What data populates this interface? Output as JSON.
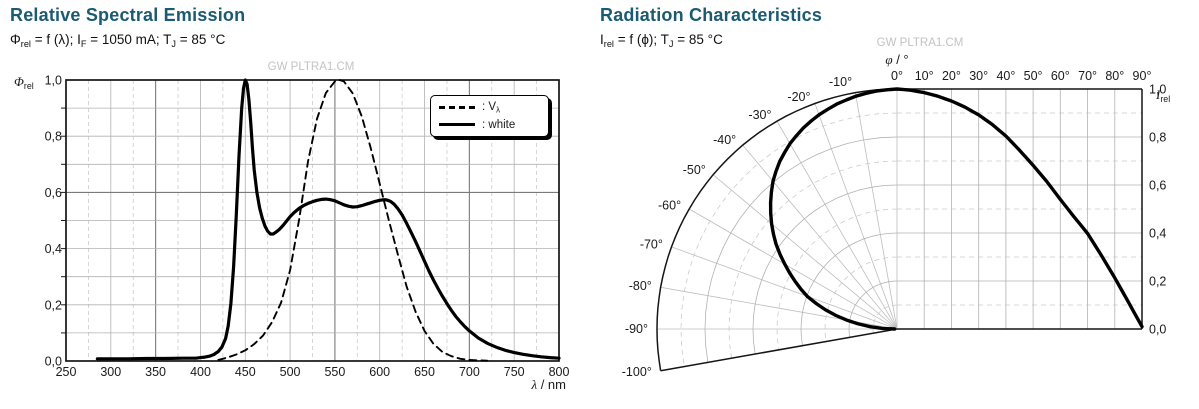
{
  "left_chart": {
    "title": "Relative Spectral Emission",
    "subtitle_segments": [
      {
        "t": "Φ"
      },
      {
        "t": "rel",
        "sub": true
      },
      {
        "t": " = f (λ); I"
      },
      {
        "t": "F",
        "sub": true
      },
      {
        "t": " = 1050 mA; T"
      },
      {
        "t": "J",
        "sub": true
      },
      {
        "t": " = 85 °C"
      }
    ],
    "ylabel_segments": [
      {
        "t": "Φ",
        "i": true
      },
      {
        "t": "rel",
        "sub": true
      }
    ],
    "xlabel_segments": [
      {
        "t": "λ",
        "i": true
      },
      {
        "t": " / nm"
      }
    ],
    "watermark": "GW PLTRA1.CM",
    "legend": {
      "items": [
        {
          "style": "dashed",
          "label_segments": [
            {
              "t": ": V"
            },
            {
              "t": "λ",
              "sub": true
            }
          ]
        },
        {
          "style": "solid",
          "label_segments": [
            {
              "t": ": white"
            }
          ]
        }
      ]
    }
  },
  "right_chart": {
    "title": "Radiation Characteristics",
    "subtitle_segments": [
      {
        "t": "I"
      },
      {
        "t": "rel",
        "sub": true
      },
      {
        "t": " = f (ϕ); T"
      },
      {
        "t": "J",
        "sub": true
      },
      {
        "t": " = 85 °C"
      }
    ],
    "top_axis_label_segments": [
      {
        "t": "φ",
        "i": true
      },
      {
        "t": " / °"
      }
    ],
    "ylabel_segments": [
      {
        "t": "I",
        "i": true
      },
      {
        "t": "rel",
        "sub": true
      }
    ],
    "watermark": "GW PLTRA1.CM"
  },
  "chart_data": [
    {
      "id": "spectral_emission",
      "type": "line",
      "title": "Relative Spectral Emission",
      "xlabel": "λ / nm",
      "ylabel": "Φrel",
      "xlim": [
        250,
        800
      ],
      "ylim": [
        0,
        1
      ],
      "x_ticks": {
        "values": [
          250,
          300,
          350,
          400,
          450,
          500,
          550,
          600,
          650,
          700,
          750,
          800
        ],
        "labels": [
          "250",
          "300",
          "350",
          "400",
          "450",
          "500",
          "550",
          "600",
          "650",
          "700",
          "750",
          "800"
        ]
      },
      "y_ticks": {
        "values": [
          0,
          0.2,
          0.4,
          0.6,
          0.8,
          1
        ],
        "labels": [
          "0,0",
          "0,2",
          "0,4",
          "0,6",
          "0,8",
          "1,0"
        ]
      },
      "grid": {
        "x_major_step": 50,
        "x_minor_step": 25,
        "emphasized_x": [
          350,
          550,
          700
        ],
        "emphasized_y": [
          0.6
        ]
      },
      "legend_position": "upper right",
      "series": [
        {
          "name": "V_lambda",
          "label": ": Vλ",
          "dash": true,
          "x": [
            420,
            430,
            440,
            450,
            460,
            470,
            480,
            490,
            500,
            510,
            520,
            530,
            540,
            550,
            555,
            560,
            570,
            580,
            590,
            600,
            610,
            620,
            630,
            640,
            650,
            660,
            670,
            680,
            690,
            700,
            710,
            720
          ],
          "y": [
            0.004,
            0.012,
            0.023,
            0.038,
            0.06,
            0.091,
            0.139,
            0.208,
            0.323,
            0.503,
            0.71,
            0.862,
            0.954,
            0.995,
            1.0,
            0.995,
            0.952,
            0.87,
            0.757,
            0.631,
            0.503,
            0.381,
            0.265,
            0.175,
            0.107,
            0.061,
            0.032,
            0.017,
            0.008,
            0.004,
            0.002,
            0.001
          ]
        },
        {
          "name": "white",
          "label": ": white",
          "dash": false,
          "x": [
            285,
            300,
            320,
            340,
            360,
            380,
            395,
            400,
            405,
            410,
            415,
            420,
            424,
            428,
            431,
            434,
            437,
            440,
            443,
            446,
            448,
            450,
            452,
            454,
            456,
            458,
            460,
            463,
            466,
            469,
            472,
            475,
            478,
            481,
            484,
            488,
            492,
            496,
            500,
            505,
            510,
            515,
            520,
            525,
            530,
            535,
            540,
            545,
            550,
            555,
            560,
            565,
            570,
            575,
            580,
            585,
            590,
            595,
            600,
            605,
            608,
            612,
            616,
            620,
            625,
            630,
            635,
            640,
            645,
            650,
            655,
            660,
            665,
            670,
            675,
            680,
            685,
            690,
            695,
            700,
            710,
            720,
            730,
            740,
            750,
            760,
            770,
            780,
            790,
            800
          ],
          "y": [
            0.008,
            0.008,
            0.008,
            0.009,
            0.009,
            0.01,
            0.01,
            0.012,
            0.014,
            0.017,
            0.023,
            0.034,
            0.05,
            0.08,
            0.125,
            0.205,
            0.335,
            0.52,
            0.73,
            0.9,
            0.97,
            1.0,
            0.985,
            0.93,
            0.85,
            0.76,
            0.68,
            0.6,
            0.545,
            0.508,
            0.48,
            0.462,
            0.452,
            0.452,
            0.458,
            0.468,
            0.482,
            0.498,
            0.514,
            0.53,
            0.543,
            0.553,
            0.561,
            0.567,
            0.572,
            0.575,
            0.576,
            0.574,
            0.57,
            0.563,
            0.556,
            0.551,
            0.548,
            0.549,
            0.553,
            0.558,
            0.563,
            0.568,
            0.572,
            0.574,
            0.573,
            0.568,
            0.558,
            0.543,
            0.52,
            0.49,
            0.458,
            0.425,
            0.39,
            0.355,
            0.32,
            0.288,
            0.258,
            0.23,
            0.204,
            0.18,
            0.158,
            0.139,
            0.122,
            0.107,
            0.082,
            0.063,
            0.049,
            0.038,
            0.03,
            0.024,
            0.019,
            0.015,
            0.012,
            0.01
          ]
        }
      ]
    },
    {
      "id": "radiation_characteristics",
      "type": "polar-line",
      "title": "Radiation Characteristics",
      "top_axis_label": "φ / °",
      "ylabel": "Irel",
      "angle_range_polar": [
        -100,
        0
      ],
      "angle_range_cartesian": [
        0,
        90
      ],
      "r_range": [
        0,
        1
      ],
      "angles": [
        0,
        5,
        10,
        15,
        20,
        25,
        30,
        35,
        40,
        45,
        50,
        55,
        60,
        65,
        70,
        75,
        80,
        85,
        90
      ],
      "values": [
        1.0,
        0.995,
        0.985,
        0.97,
        0.95,
        0.924,
        0.892,
        0.852,
        0.804,
        0.745,
        0.682,
        0.615,
        0.54,
        0.468,
        0.398,
        0.308,
        0.213,
        0.112,
        0.01
      ],
      "polar_ticks": {
        "values": [
          -10,
          -20,
          -30,
          -40,
          -50,
          -60,
          -70,
          -80,
          -90,
          -100
        ],
        "labels": [
          "-10°",
          "-20°",
          "-30°",
          "-40°",
          "-50°",
          "-60°",
          "-70°",
          "-80°",
          "-90°",
          "-100°"
        ]
      },
      "top_ticks": {
        "values": [
          0,
          10,
          20,
          30,
          40,
          50,
          60,
          70,
          80,
          90
        ],
        "labels": [
          "0°",
          "10°",
          "20°",
          "30°",
          "40°",
          "50°",
          "60°",
          "70°",
          "80°",
          "90°"
        ]
      },
      "value_ticks": {
        "values": [
          1,
          0.8,
          0.6,
          0.4,
          0.2,
          0
        ],
        "labels": [
          "1,0",
          "0,8",
          "0,6",
          "0,4",
          "0,2",
          "0,0"
        ]
      },
      "grid": {
        "r_step": 0.1,
        "angle_step": 10,
        "solid_r": [
          0.2,
          0.4,
          0.6,
          0.8
        ],
        "dashed_r": [
          0.1,
          0.3,
          0.5,
          0.7,
          0.9
        ]
      }
    }
  ]
}
